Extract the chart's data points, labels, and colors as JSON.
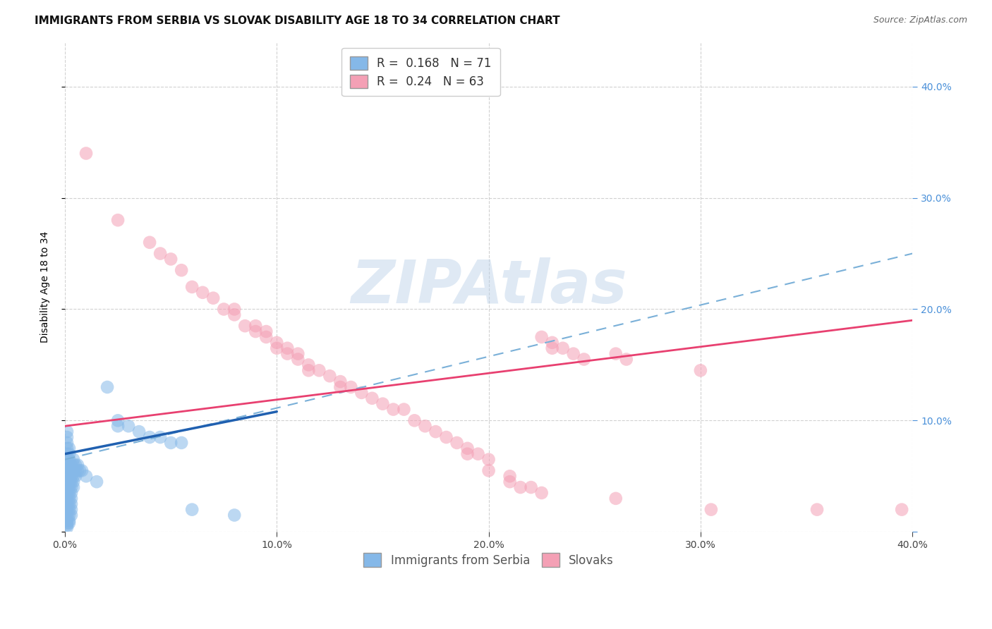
{
  "title": "IMMIGRANTS FROM SERBIA VS SLOVAK DISABILITY AGE 18 TO 34 CORRELATION CHART",
  "source": "Source: ZipAtlas.com",
  "ylabel": "Disability Age 18 to 34",
  "xlim": [
    0.0,
    0.4
  ],
  "ylim": [
    0.0,
    0.44
  ],
  "xticks": [
    0.0,
    0.1,
    0.2,
    0.3,
    0.4
  ],
  "yticks": [
    0.0,
    0.1,
    0.2,
    0.3,
    0.4
  ],
  "serbia_R": 0.168,
  "serbia_N": 71,
  "slovak_R": 0.24,
  "slovak_N": 63,
  "serbia_color": "#85b8e8",
  "slovak_color": "#f4a0b5",
  "serbia_line_color": "#2060b0",
  "slovak_line_color": "#e84070",
  "dashed_line_color": "#7ab0d8",
  "serbia_scatter": [
    [
      0.001,
      0.055
    ],
    [
      0.001,
      0.06
    ],
    [
      0.001,
      0.065
    ],
    [
      0.001,
      0.07
    ],
    [
      0.001,
      0.075
    ],
    [
      0.001,
      0.08
    ],
    [
      0.001,
      0.085
    ],
    [
      0.001,
      0.09
    ],
    [
      0.001,
      0.05
    ],
    [
      0.001,
      0.045
    ],
    [
      0.001,
      0.04
    ],
    [
      0.001,
      0.035
    ],
    [
      0.001,
      0.03
    ],
    [
      0.001,
      0.025
    ],
    [
      0.001,
      0.02
    ],
    [
      0.001,
      0.015
    ],
    [
      0.001,
      0.01
    ],
    [
      0.001,
      0.008
    ],
    [
      0.001,
      0.006
    ],
    [
      0.001,
      0.004
    ],
    [
      0.002,
      0.055
    ],
    [
      0.002,
      0.06
    ],
    [
      0.002,
      0.065
    ],
    [
      0.002,
      0.07
    ],
    [
      0.002,
      0.075
    ],
    [
      0.002,
      0.05
    ],
    [
      0.002,
      0.045
    ],
    [
      0.002,
      0.04
    ],
    [
      0.002,
      0.035
    ],
    [
      0.002,
      0.03
    ],
    [
      0.002,
      0.025
    ],
    [
      0.002,
      0.02
    ],
    [
      0.002,
      0.015
    ],
    [
      0.002,
      0.01
    ],
    [
      0.002,
      0.008
    ],
    [
      0.003,
      0.06
    ],
    [
      0.003,
      0.055
    ],
    [
      0.003,
      0.05
    ],
    [
      0.003,
      0.045
    ],
    [
      0.003,
      0.04
    ],
    [
      0.003,
      0.035
    ],
    [
      0.003,
      0.03
    ],
    [
      0.003,
      0.025
    ],
    [
      0.003,
      0.02
    ],
    [
      0.003,
      0.015
    ],
    [
      0.004,
      0.065
    ],
    [
      0.004,
      0.06
    ],
    [
      0.004,
      0.055
    ],
    [
      0.004,
      0.05
    ],
    [
      0.004,
      0.045
    ],
    [
      0.004,
      0.04
    ],
    [
      0.005,
      0.06
    ],
    [
      0.005,
      0.055
    ],
    [
      0.005,
      0.05
    ],
    [
      0.006,
      0.06
    ],
    [
      0.006,
      0.055
    ],
    [
      0.007,
      0.055
    ],
    [
      0.008,
      0.055
    ],
    [
      0.01,
      0.05
    ],
    [
      0.015,
      0.045
    ],
    [
      0.02,
      0.13
    ],
    [
      0.025,
      0.1
    ],
    [
      0.025,
      0.095
    ],
    [
      0.03,
      0.095
    ],
    [
      0.035,
      0.09
    ],
    [
      0.04,
      0.085
    ],
    [
      0.045,
      0.085
    ],
    [
      0.05,
      0.08
    ],
    [
      0.055,
      0.08
    ],
    [
      0.06,
      0.02
    ],
    [
      0.08,
      0.015
    ]
  ],
  "slovak_scatter": [
    [
      0.01,
      0.34
    ],
    [
      0.025,
      0.28
    ],
    [
      0.04,
      0.26
    ],
    [
      0.045,
      0.25
    ],
    [
      0.05,
      0.245
    ],
    [
      0.055,
      0.235
    ],
    [
      0.06,
      0.22
    ],
    [
      0.065,
      0.215
    ],
    [
      0.07,
      0.21
    ],
    [
      0.075,
      0.2
    ],
    [
      0.08,
      0.2
    ],
    [
      0.08,
      0.195
    ],
    [
      0.085,
      0.185
    ],
    [
      0.09,
      0.185
    ],
    [
      0.09,
      0.18
    ],
    [
      0.095,
      0.18
    ],
    [
      0.095,
      0.175
    ],
    [
      0.1,
      0.17
    ],
    [
      0.1,
      0.165
    ],
    [
      0.105,
      0.165
    ],
    [
      0.105,
      0.16
    ],
    [
      0.11,
      0.16
    ],
    [
      0.11,
      0.155
    ],
    [
      0.115,
      0.15
    ],
    [
      0.115,
      0.145
    ],
    [
      0.12,
      0.145
    ],
    [
      0.125,
      0.14
    ],
    [
      0.13,
      0.135
    ],
    [
      0.13,
      0.13
    ],
    [
      0.135,
      0.13
    ],
    [
      0.14,
      0.125
    ],
    [
      0.145,
      0.12
    ],
    [
      0.15,
      0.115
    ],
    [
      0.155,
      0.11
    ],
    [
      0.16,
      0.11
    ],
    [
      0.165,
      0.1
    ],
    [
      0.17,
      0.095
    ],
    [
      0.175,
      0.09
    ],
    [
      0.18,
      0.085
    ],
    [
      0.185,
      0.08
    ],
    [
      0.19,
      0.075
    ],
    [
      0.19,
      0.07
    ],
    [
      0.195,
      0.07
    ],
    [
      0.2,
      0.065
    ],
    [
      0.2,
      0.055
    ],
    [
      0.21,
      0.05
    ],
    [
      0.21,
      0.045
    ],
    [
      0.215,
      0.04
    ],
    [
      0.22,
      0.04
    ],
    [
      0.225,
      0.035
    ],
    [
      0.225,
      0.175
    ],
    [
      0.23,
      0.17
    ],
    [
      0.23,
      0.165
    ],
    [
      0.235,
      0.165
    ],
    [
      0.24,
      0.16
    ],
    [
      0.245,
      0.155
    ],
    [
      0.26,
      0.16
    ],
    [
      0.265,
      0.155
    ],
    [
      0.3,
      0.145
    ],
    [
      0.26,
      0.03
    ],
    [
      0.305,
      0.02
    ],
    [
      0.355,
      0.02
    ],
    [
      0.395,
      0.02
    ]
  ],
  "watermark": "ZIPAtlas",
  "background_color": "#ffffff",
  "grid_color": "#cccccc",
  "title_fontsize": 11,
  "axis_label_fontsize": 10,
  "tick_fontsize": 10,
  "legend_fontsize": 12,
  "right_ytick_color": "#4a90d9",
  "serbia_line_x": [
    0.0,
    0.1
  ],
  "serbia_line_y": [
    0.07,
    0.108
  ],
  "slovak_line_x": [
    0.0,
    0.4
  ],
  "slovak_line_y": [
    0.095,
    0.19
  ],
  "dashed_line_x": [
    0.0,
    0.4
  ],
  "dashed_line_y": [
    0.065,
    0.25
  ]
}
